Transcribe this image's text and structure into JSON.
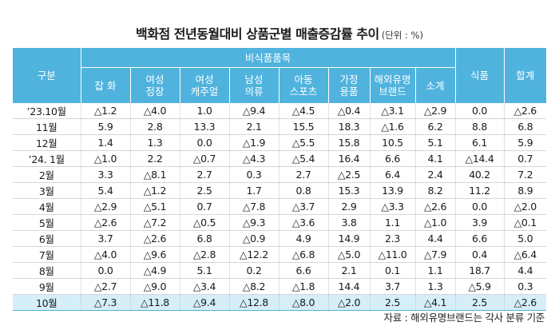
{
  "title": "백화점 전년동월대비 상품군별 매출증감률 추이",
  "unit": "(단위 : %)",
  "header": {
    "rowhead": "구분",
    "group": "비식품품목",
    "food": "식품",
    "total": "합계",
    "columns": [
      [
        "잡 화"
      ],
      [
        "여성",
        "정장"
      ],
      [
        "여성",
        "캐주얼"
      ],
      [
        "남성",
        "의류"
      ],
      [
        "아동",
        "스포츠"
      ],
      [
        "가정",
        "용품"
      ],
      [
        "해외유명",
        "브랜드"
      ],
      [
        "소계"
      ]
    ]
  },
  "rows": [
    {
      "label": "’23.10월",
      "values": [
        "△1.2",
        "△4.0",
        "1.0",
        "△9.4",
        "△4.5",
        "△0.4",
        "△3.1",
        "△2.9",
        "0.0",
        "△2.6"
      ]
    },
    {
      "label": "11월",
      "values": [
        "5.9",
        "2.8",
        "13.3",
        "2.1",
        "15.5",
        "18.3",
        "△1.6",
        "6.2",
        "8.8",
        "6.8"
      ]
    },
    {
      "label": "12월",
      "values": [
        "1.4",
        "1.3",
        "0.0",
        "△1.9",
        "△5.5",
        "15.8",
        "10.5",
        "5.1",
        "6.1",
        "5.9"
      ]
    },
    {
      "label": "’24. 1월",
      "values": [
        "△1.0",
        "2.2",
        "△0.7",
        "△4.3",
        "△5.4",
        "16.4",
        "6.6",
        "4.1",
        "△14.4",
        "0.7"
      ]
    },
    {
      "label": "2월",
      "values": [
        "3.3",
        "△8.1",
        "2.7",
        "0.3",
        "2.7",
        "△2.5",
        "6.4",
        "2.4",
        "40.2",
        "7.2"
      ]
    },
    {
      "label": "3월",
      "values": [
        "5.4",
        "△1.2",
        "2.5",
        "1.7",
        "0.8",
        "15.3",
        "13.9",
        "8.2",
        "11.2",
        "8.9"
      ]
    },
    {
      "label": "4월",
      "values": [
        "△2.9",
        "△5.1",
        "0.7",
        "△7.8",
        "△3.7",
        "2.9",
        "△3.3",
        "△2.6",
        "0.0",
        "△2.0"
      ]
    },
    {
      "label": "5월",
      "values": [
        "△2.6",
        "△7.2",
        "△0.5",
        "△9.3",
        "△3.6",
        "3.8",
        "1.1",
        "△1.0",
        "3.9",
        "△0.1"
      ]
    },
    {
      "label": "6월",
      "values": [
        "3.7",
        "△2.6",
        "6.8",
        "△0.9",
        "4.9",
        "14.9",
        "2.3",
        "4.4",
        "6.6",
        "5.0"
      ]
    },
    {
      "label": "7월",
      "values": [
        "△4.0",
        "△9.6",
        "△2.8",
        "△12.2",
        "△6.8",
        "△5.0",
        "△11.0",
        "△7.9",
        "0.4",
        "△6.4"
      ]
    },
    {
      "label": "8월",
      "values": [
        "0.0",
        "△4.9",
        "5.1",
        "0.2",
        "6.6",
        "2.1",
        "0.1",
        "1.1",
        "18.7",
        "4.4"
      ]
    },
    {
      "label": "9월",
      "values": [
        "△2.7",
        "△9.0",
        "△3.4",
        "△8.2",
        "△1.8",
        "14.4",
        "3.7",
        "1.3",
        "△5.9",
        "0.3"
      ]
    },
    {
      "label": "10월",
      "values": [
        "△7.3",
        "△11.8",
        "△9.4",
        "△12.8",
        "△8.0",
        "△2.0",
        "2.5",
        "△4.1",
        "2.5",
        "△2.6"
      ],
      "highlight": true
    }
  ],
  "source": "자료 : 해외유명브랜드는 각사 분류 기준",
  "colors": {
    "header_bg": "#4fb3de",
    "highlight_bg": "#d6eef8"
  }
}
